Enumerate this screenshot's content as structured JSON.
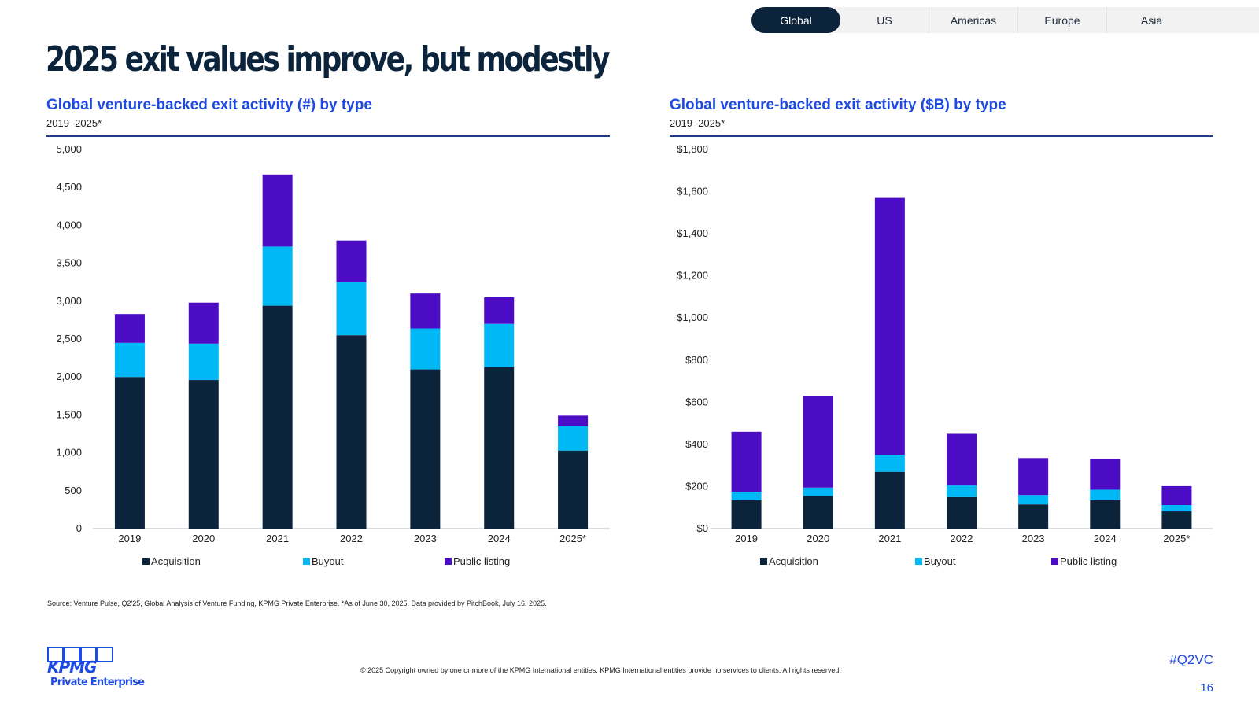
{
  "nav": {
    "tabs": [
      "Global",
      "US",
      "Americas",
      "Europe",
      "Asia"
    ],
    "active": 0
  },
  "page": {
    "title": "2025 exit values improve, but modestly",
    "source": "Source: Venture Pulse, Q2'25, Global Analysis of Venture Funding, KPMG Private Enterprise. *As of June 30, 2025. Data provided by PitchBook, July 16, 2025.",
    "copyright": "© 2025 Copyright owned by one or more of the KPMG International entities. KPMG International entities provide no services to clients. All rights reserved.",
    "hashtag": "#Q2VC",
    "page_number": "16"
  },
  "logo": {
    "wordmark": "KPMG",
    "subline": "Private Enterprise"
  },
  "colors": {
    "acquisition": "#0c233c",
    "buyout": "#00b8f5",
    "public_listing": "#4c0bc4",
    "accent": "#1e49e2"
  },
  "chart_data": [
    {
      "type": "bar",
      "stacked": true,
      "title": "Global venture-backed exit activity (#) by type",
      "subtitle": "2019–2025*",
      "categories": [
        "2019",
        "2020",
        "2021",
        "2022",
        "2023",
        "2024",
        "2025*"
      ],
      "series": [
        {
          "name": "Acquisition",
          "values": [
            2000,
            1960,
            2940,
            2550,
            2100,
            2130,
            1030
          ]
        },
        {
          "name": "Buyout",
          "values": [
            450,
            480,
            780,
            700,
            540,
            570,
            320
          ]
        },
        {
          "name": "Public listing",
          "values": [
            380,
            540,
            950,
            550,
            460,
            350,
            140
          ]
        }
      ],
      "ylim": [
        0,
        5000
      ],
      "yticks": [
        "0",
        "500",
        "1,000",
        "1,500",
        "2,000",
        "2,500",
        "3,000",
        "3,500",
        "4,000",
        "4,500",
        "5,000"
      ],
      "grid": false,
      "legend": "bottom"
    },
    {
      "type": "bar",
      "stacked": true,
      "title": "Global venture-backed exit activity ($B) by type",
      "subtitle": "2019–2025*",
      "categories": [
        "2019",
        "2020",
        "2021",
        "2022",
        "2023",
        "2024",
        "2025*"
      ],
      "series": [
        {
          "name": "Acquisition",
          "values": [
            135,
            155,
            270,
            150,
            115,
            135,
            82
          ]
        },
        {
          "name": "Buyout",
          "values": [
            40,
            40,
            80,
            55,
            45,
            50,
            30
          ]
        },
        {
          "name": "Public listing",
          "values": [
            285,
            435,
            1220,
            245,
            175,
            145,
            90
          ]
        }
      ],
      "ylim": [
        0,
        1800
      ],
      "yticks": [
        "$0",
        "$200",
        "$400",
        "$600",
        "$800",
        "$1,000",
        "$1,200",
        "$1,400",
        "$1,600",
        "$1,800"
      ],
      "grid": false,
      "legend": "bottom"
    }
  ]
}
